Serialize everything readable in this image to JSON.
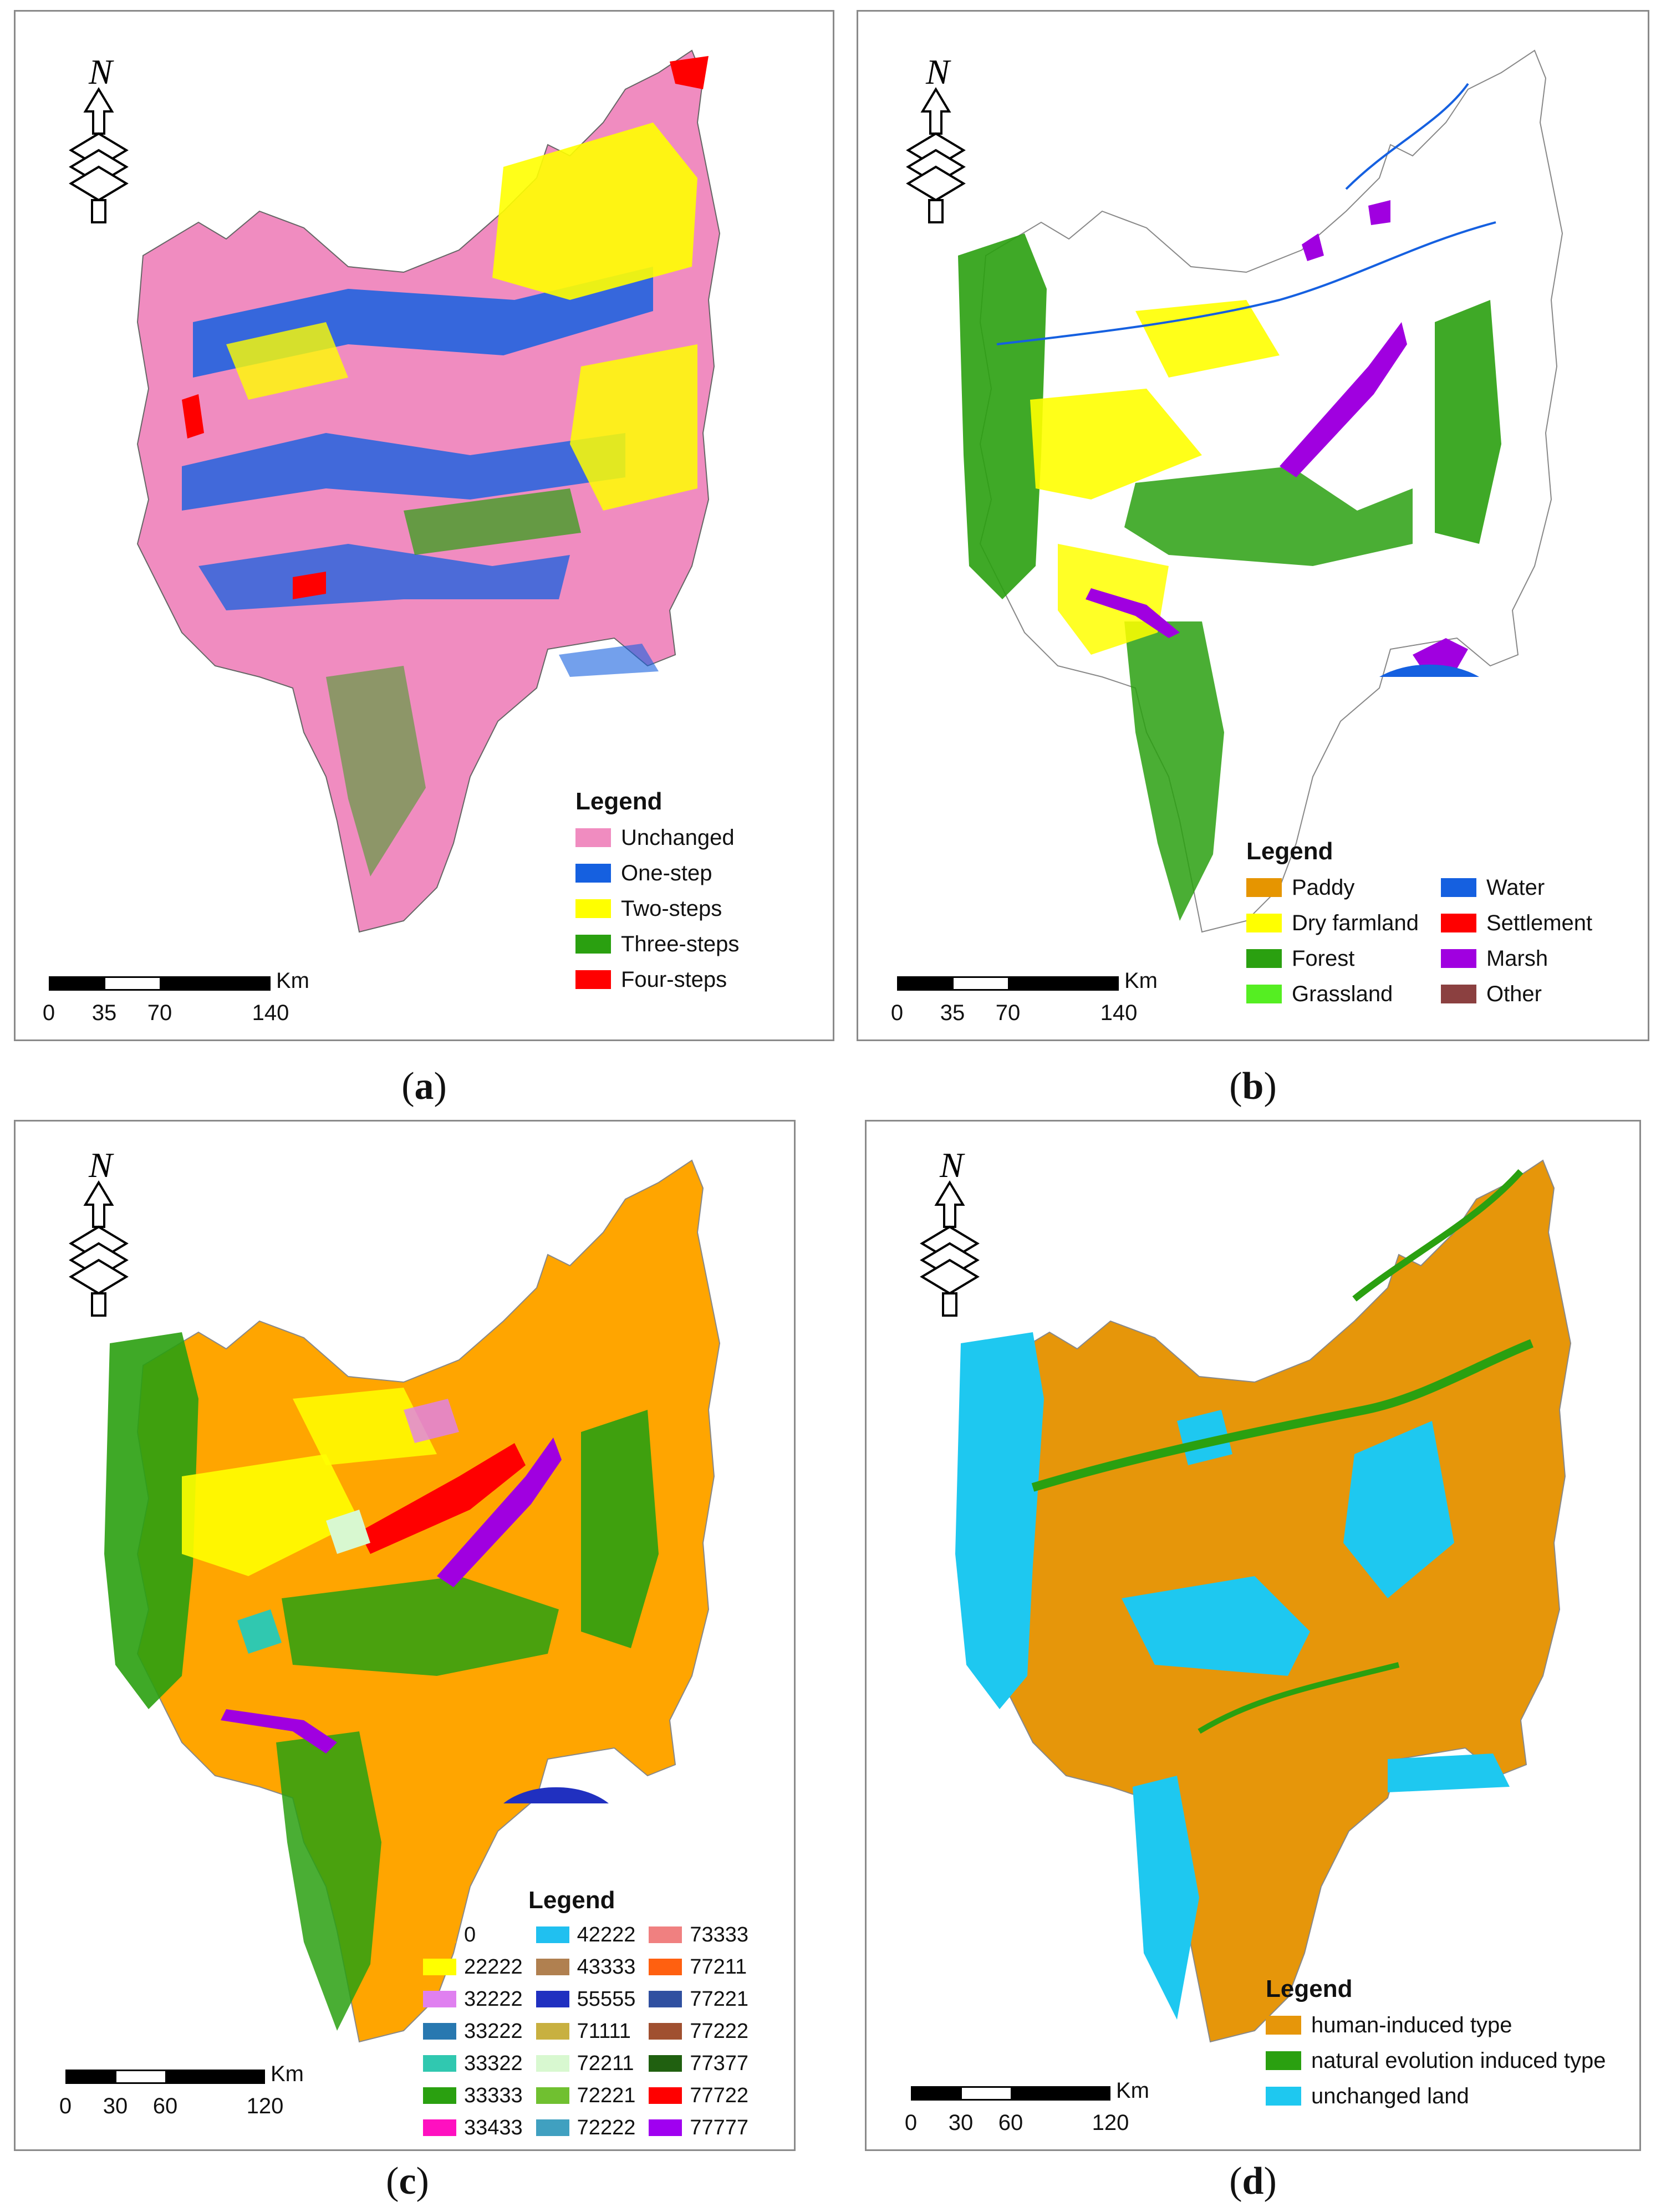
{
  "colors": {
    "unchanged": "#f08cc0",
    "one_step": "#1560e0",
    "two_steps": "#ffff00",
    "three_steps": "#2aa010",
    "four_steps": "#ff0000",
    "paddy": "#e69500",
    "dry_farmland": "#ffff00",
    "forest": "#2aa010",
    "grassland": "#55ee22",
    "water": "#1560e0",
    "settlement": "#ff0000",
    "marsh": "#a000e0",
    "other": "#8b4040",
    "human_induced": "#e6960a",
    "natural_evolution": "#2aa010",
    "unchanged_land": "#1ec8f0"
  },
  "panels": [
    {
      "caption_letter": "a",
      "north_letter": "N",
      "legend": {
        "title": "Legend",
        "items": [
          {
            "label": "Unchanged",
            "color": "#f08cc0"
          },
          {
            "label": "One-step",
            "color": "#1560e0"
          },
          {
            "label": "Two-steps",
            "color": "#ffff00"
          },
          {
            "label": "Three-steps",
            "color": "#2aa010"
          },
          {
            "label": "Four-steps",
            "color": "#ff0000"
          }
        ]
      },
      "scale": {
        "unit": "Km",
        "ticks": [
          "0",
          "35",
          "70",
          "140"
        ]
      }
    },
    {
      "caption_letter": "b",
      "north_letter": "N",
      "legend": {
        "title": "Legend",
        "items": [
          {
            "label": "Paddy",
            "color": "#e69500"
          },
          {
            "label": "Dry farmland",
            "color": "#ffff00"
          },
          {
            "label": "Forest",
            "color": "#2aa010"
          },
          {
            "label": "Grassland",
            "color": "#55ee22"
          },
          {
            "label": "Water",
            "color": "#1560e0"
          },
          {
            "label": "Settlement",
            "color": "#ff0000"
          },
          {
            "label": "Marsh",
            "color": "#a000e0"
          },
          {
            "label": "Other",
            "color": "#8b4040"
          }
        ]
      },
      "scale": {
        "unit": "Km",
        "ticks": [
          "0",
          "35",
          "70",
          "140"
        ]
      }
    },
    {
      "caption_letter": "c",
      "north_letter": "N",
      "legend": {
        "title": "Legend",
        "items": [
          {
            "label": "0",
            "color": "#ffa500"
          },
          {
            "label": "22222",
            "color": "#ffff00"
          },
          {
            "label": "32222",
            "color": "#e080f0"
          },
          {
            "label": "33222",
            "color": "#2878b0"
          },
          {
            "label": "33322",
            "color": "#30c8b0"
          },
          {
            "label": "33333",
            "color": "#2aa010"
          },
          {
            "label": "33433",
            "color": "#ff10c0"
          },
          {
            "label": "42222",
            "color": "#20c0f0"
          },
          {
            "label": "43333",
            "color": "#b08050"
          },
          {
            "label": "55555",
            "color": "#2030c0"
          },
          {
            "label": "71111",
            "color": "#c8b040"
          },
          {
            "label": "72211",
            "color": "#d8f8d0"
          },
          {
            "label": "72221",
            "color": "#70c030"
          },
          {
            "label": "72222",
            "color": "#40a0c0"
          },
          {
            "label": "73333",
            "color": "#f08080"
          },
          {
            "label": "77211",
            "color": "#ff6010"
          },
          {
            "label": "77221",
            "color": "#3050a0"
          },
          {
            "label": "77222",
            "color": "#a05030"
          },
          {
            "label": "77377",
            "color": "#206010"
          },
          {
            "label": "77722",
            "color": "#ff0000"
          },
          {
            "label": "77777",
            "color": "#a000f0"
          }
        ]
      },
      "scale": {
        "unit": "Km",
        "ticks": [
          "0",
          "30",
          "60",
          "120"
        ]
      }
    },
    {
      "caption_letter": "d",
      "north_letter": "N",
      "legend": {
        "title": "Legend",
        "items": [
          {
            "label": "human-induced type",
            "color": "#e6960a"
          },
          {
            "label": "natural evolution induced type",
            "color": "#2aa010"
          },
          {
            "label": "unchanged land",
            "color": "#1ec8f0"
          }
        ]
      },
      "scale": {
        "unit": "Km",
        "ticks": [
          "0",
          "30",
          "60",
          "120"
        ]
      }
    }
  ]
}
